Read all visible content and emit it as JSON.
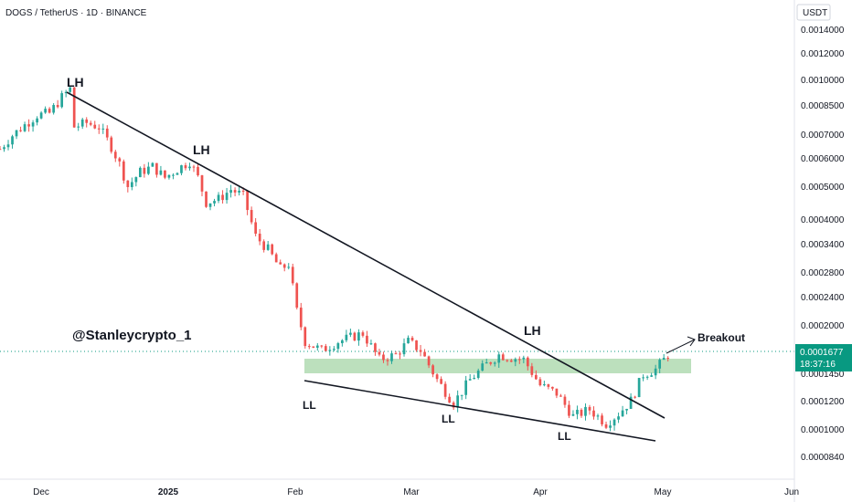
{
  "header": {
    "title": "DOGS / TetherUS · 1D · BINANCE"
  },
  "price_axis": {
    "unit": "USDT",
    "ticks": [
      "0.0014000",
      "0.0012000",
      "0.0010000",
      "0.0008500",
      "0.0007000",
      "0.0006000",
      "0.0005000",
      "0.0004000",
      "0.0003400",
      "0.0002800",
      "0.0002400",
      "0.0002000",
      "0.0001677",
      "0.0001450",
      "0.0001200",
      "0.0001000",
      "0.0000840"
    ],
    "current_price": "0.0001677",
    "countdown": "18:37:16"
  },
  "time_axis": {
    "labels": [
      "Dec",
      "2025",
      "Feb",
      "Mar",
      "Apr",
      "May",
      "Jun"
    ]
  },
  "watermark": "@Stanleycrypto_1",
  "annotations": {
    "lh": [
      "LH",
      "LH",
      "LH"
    ],
    "ll": [
      "LL",
      "LL",
      "LL"
    ],
    "breakout": "Breakout"
  },
  "colors": {
    "up": "#26a69a",
    "down": "#ef5350",
    "zone": "#a5d6a7",
    "line": "#131722",
    "price_line": "#089981"
  },
  "chart_data": {
    "type": "candlestick",
    "title": "DOGS / TetherUS · 1D · BINANCE",
    "y_unit": "USDT",
    "y_scale": "log",
    "ylim": [
      8e-05,
      0.0015
    ],
    "xlim": [
      "2024-11-22",
      "2025-06-02"
    ],
    "x_ticks": [
      "Dec",
      "2025",
      "Feb",
      "Mar",
      "Apr",
      "May",
      "Jun"
    ],
    "grid": false,
    "series": [
      {
        "name": "DOGS / TetherUS",
        "ohlc_close": [
          [
            "2024-11-22",
            0.00064
          ],
          [
            "2024-11-25",
            0.0007
          ],
          [
            "2024-11-28",
            0.00075
          ],
          [
            "2024-12-01",
            0.0008
          ],
          [
            "2024-12-04",
            0.00081
          ],
          [
            "2024-12-07",
            0.0009
          ],
          [
            "2024-12-09",
            0.00095
          ],
          [
            "2024-12-10",
            0.00074
          ],
          [
            "2024-12-13",
            0.00076
          ],
          [
            "2024-12-16",
            0.00074
          ],
          [
            "2024-12-19",
            0.00065
          ],
          [
            "2024-12-21",
            0.00058
          ],
          [
            "2024-12-23",
            0.0005
          ],
          [
            "2024-12-26",
            0.00055
          ],
          [
            "2024-12-29",
            0.00057
          ],
          [
            "2025-01-01",
            0.00053
          ],
          [
            "2025-01-04",
            0.00056
          ],
          [
            "2025-01-07",
            0.00059
          ],
          [
            "2025-01-09",
            0.00053
          ],
          [
            "2025-01-11",
            0.00045
          ],
          [
            "2025-01-14",
            0.00046
          ],
          [
            "2025-01-17",
            0.00049
          ],
          [
            "2025-01-20",
            0.00047
          ],
          [
            "2025-01-23",
            0.00036
          ],
          [
            "2025-01-26",
            0.00033
          ],
          [
            "2025-01-29",
            0.00029
          ],
          [
            "2025-01-31",
            0.0003
          ],
          [
            "2025-02-02",
            0.00022
          ],
          [
            "2025-02-04",
            0.00018
          ],
          [
            "2025-02-08",
            0.00017
          ],
          [
            "2025-02-12",
            0.00018
          ],
          [
            "2025-02-18",
            0.00019
          ],
          [
            "2025-02-22",
            0.00016
          ],
          [
            "2025-02-26",
            0.000165
          ],
          [
            "2025-03-01",
            0.00018
          ],
          [
            "2025-03-04",
            0.00017
          ],
          [
            "2025-03-08",
            0.00014
          ],
          [
            "2025-03-12",
            0.00012
          ],
          [
            "2025-03-16",
            0.00014
          ],
          [
            "2025-03-20",
            0.000155
          ],
          [
            "2025-03-23",
            0.000165
          ],
          [
            "2025-03-26",
            0.000162
          ],
          [
            "2025-03-29",
            0.00016
          ],
          [
            "2025-04-02",
            0.000135
          ],
          [
            "2025-04-06",
            0.000128
          ],
          [
            "2025-04-10",
            0.00011
          ],
          [
            "2025-04-14",
            0.000115
          ],
          [
            "2025-04-18",
            0.000105
          ],
          [
            "2025-04-21",
            0.000112
          ],
          [
            "2025-04-24",
            0.000122
          ],
          [
            "2025-04-27",
            0.000145
          ],
          [
            "2025-04-30",
            0.00015
          ],
          [
            "2025-05-03",
            0.000165
          ]
        ]
      }
    ],
    "annotations": {
      "lower_highs": [
        [
          "2024-12-10",
          0.00095
        ],
        [
          "2025-01-06",
          0.00059
        ],
        [
          "2025-03-23",
          0.000198
        ]
      ],
      "lower_lows": [
        [
          "2025-02-03",
          0.000135
        ],
        [
          "2025-03-12",
          0.000115
        ],
        [
          "2025-04-10",
          0.000106
        ]
      ],
      "support_zone": [
        0.000147,
        0.000156
      ],
      "breakout_label": "Breakout"
    }
  }
}
